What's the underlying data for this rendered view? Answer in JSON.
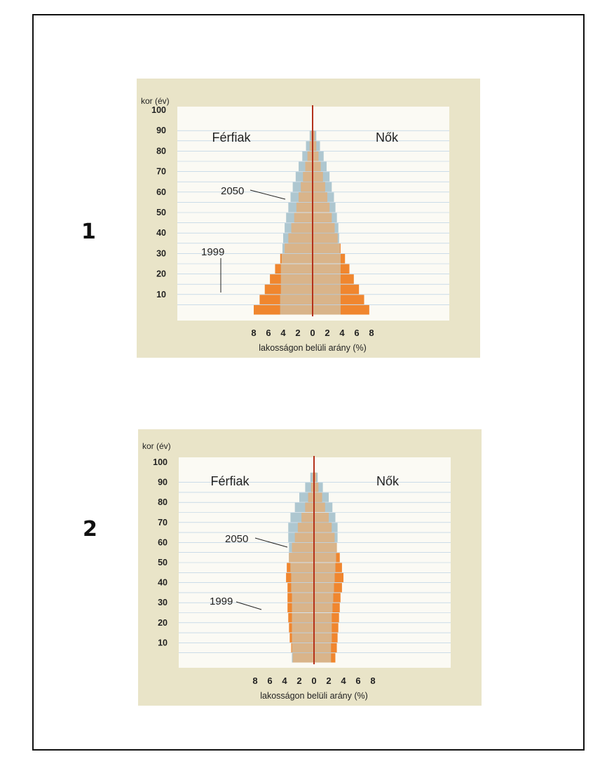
{
  "figures": [
    {
      "label": "1",
      "chart_data": {
        "type": "bar",
        "subtype": "population-pyramid",
        "ylabel": "kor (év)",
        "xlabel": "lakosságon belüli arány (%)",
        "left_group": "Férfiak",
        "right_group": "Nők",
        "age_ticks": [
          "100",
          "90",
          "80",
          "70",
          "60",
          "50",
          "40",
          "30",
          "20",
          "10"
        ],
        "x_ticks": [
          "8",
          "6",
          "4",
          "2",
          "0",
          "2",
          "4",
          "6",
          "8"
        ],
        "xlim": [
          -8,
          8
        ],
        "ylim": [
          0,
          100
        ],
        "age_groups": [
          "0-5",
          "5-10",
          "10-15",
          "15-20",
          "20-25",
          "25-30",
          "30-35",
          "35-40",
          "40-45",
          "45-50",
          "50-55",
          "55-60",
          "60-65",
          "65-70",
          "70-75",
          "75-80",
          "80-85",
          "85-90"
        ],
        "series": [
          {
            "name": "1999",
            "color": "#f0862e",
            "male": [
              8.0,
              7.2,
              6.5,
              5.8,
              5.1,
              4.4,
              3.8,
              3.3,
              2.9,
              2.5,
              2.2,
              1.9,
              1.6,
              1.3,
              1.0,
              0.7,
              0.4,
              0.2
            ],
            "female": [
              7.7,
              7.0,
              6.3,
              5.6,
              5.0,
              4.4,
              3.8,
              3.4,
              3.0,
              2.6,
              2.3,
              2.0,
              1.7,
              1.4,
              1.1,
              0.8,
              0.5,
              0.3
            ]
          },
          {
            "name": "2050",
            "color": "#a7c2cc",
            "male": [
              4.4,
              4.4,
              4.3,
              4.3,
              4.3,
              4.2,
              4.1,
              4.0,
              3.8,
              3.6,
              3.3,
              3.0,
              2.7,
              2.3,
              1.9,
              1.4,
              0.9,
              0.4
            ],
            "female": [
              3.8,
              3.8,
              3.8,
              3.8,
              3.8,
              3.8,
              3.7,
              3.6,
              3.5,
              3.3,
              3.1,
              2.9,
              2.6,
              2.3,
              1.9,
              1.5,
              1.0,
              0.5
            ]
          }
        ],
        "annotations": [
          "2050",
          "1999"
        ]
      }
    },
    {
      "label": "2",
      "chart_data": {
        "type": "bar",
        "subtype": "population-pyramid",
        "ylabel": "kor (év)",
        "xlabel": "lakosságon belüli arány (%)",
        "left_group": "Férfiak",
        "right_group": "Nők",
        "age_ticks": [
          "100",
          "90",
          "80",
          "70",
          "60",
          "50",
          "40",
          "30",
          "20",
          "10"
        ],
        "x_ticks": [
          "8",
          "6",
          "4",
          "2",
          "0",
          "2",
          "4",
          "6",
          "8"
        ],
        "xlim": [
          -8,
          8
        ],
        "ylim": [
          0,
          100
        ],
        "age_groups": [
          "0-5",
          "5-10",
          "10-15",
          "15-20",
          "20-25",
          "25-30",
          "30-35",
          "35-40",
          "40-45",
          "45-50",
          "50-55",
          "55-60",
          "60-65",
          "65-70",
          "70-75",
          "75-80",
          "80-85",
          "85-90",
          "90-95"
        ],
        "series": [
          {
            "name": "1999",
            "color": "#f0862e",
            "male": [
              2.9,
              3.1,
              3.3,
              3.4,
              3.5,
              3.6,
              3.6,
              3.6,
              3.8,
              3.7,
              3.4,
              3.0,
              2.6,
              2.2,
              1.7,
              1.2,
              0.8,
              0.4,
              0.2
            ],
            "female": [
              2.9,
              3.1,
              3.2,
              3.3,
              3.4,
              3.5,
              3.6,
              3.8,
              4.0,
              3.8,
              3.5,
              3.1,
              2.8,
              2.4,
              2.0,
              1.5,
              1.1,
              0.6,
              0.3
            ]
          },
          {
            "name": "2050",
            "color": "#a7c2cc",
            "male": [
              3.0,
              3.0,
              3.0,
              3.0,
              3.0,
              3.0,
              3.0,
              3.1,
              3.1,
              3.2,
              3.4,
              3.4,
              3.5,
              3.5,
              3.2,
              2.6,
              2.0,
              1.2,
              0.5
            ],
            "female": [
              2.3,
              2.3,
              2.4,
              2.4,
              2.4,
              2.5,
              2.6,
              2.7,
              2.8,
              2.9,
              3.0,
              3.1,
              3.2,
              3.2,
              2.9,
              2.5,
              2.0,
              1.2,
              0.5
            ]
          }
        ],
        "annotations": [
          "2050",
          "1999"
        ]
      }
    }
  ],
  "colors": {
    "panel_bg": "#e9e4c8",
    "plot_bg": "#fbfaf4",
    "center_line": "#b4321c",
    "grid_line": "#8fb5d8"
  }
}
